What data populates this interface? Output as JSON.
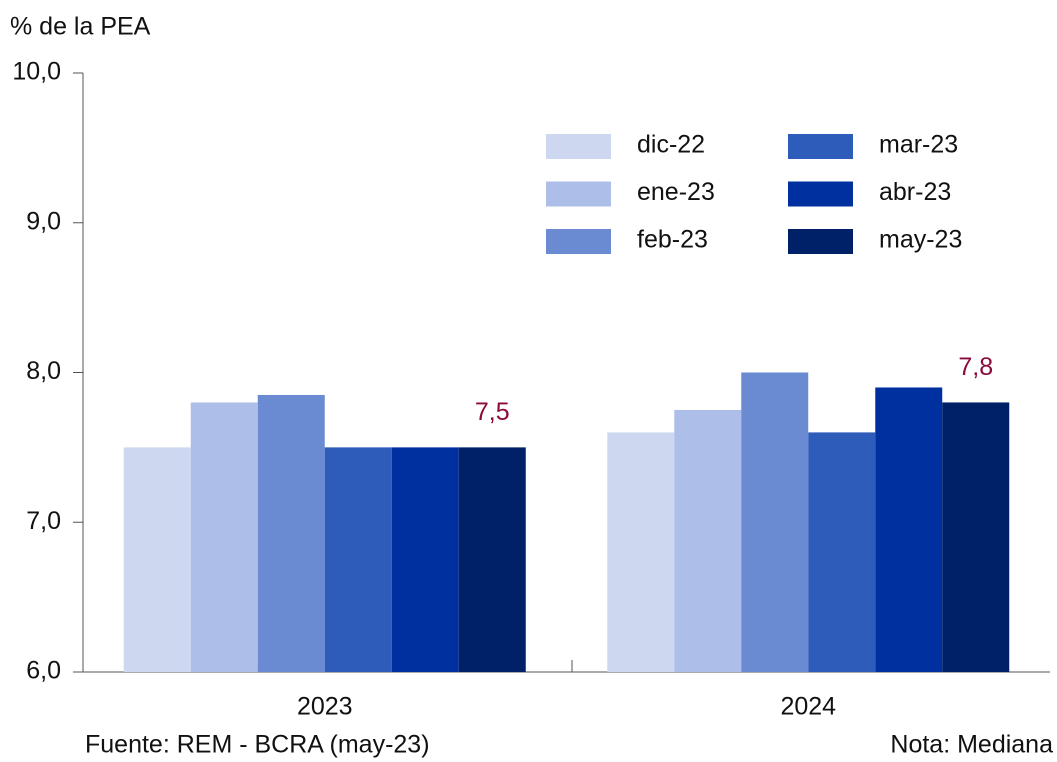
{
  "chart_data": {
    "type": "bar",
    "y_label": "% de la PEA",
    "categories": [
      "2023",
      "2024"
    ],
    "series": [
      {
        "name": "dic-22",
        "color": "#cdd8f0",
        "values": [
          7.5,
          7.6
        ]
      },
      {
        "name": "ene-23",
        "color": "#adbfe8",
        "values": [
          7.8,
          7.75
        ]
      },
      {
        "name": "feb-23",
        "color": "#6a8ad2",
        "values": [
          7.85,
          8.0
        ]
      },
      {
        "name": "mar-23",
        "color": "#2e5cbb",
        "values": [
          7.5,
          7.6
        ]
      },
      {
        "name": "abr-23",
        "color": "#0030a0",
        "values": [
          7.5,
          7.9
        ]
      },
      {
        "name": "may-23",
        "color": "#002068",
        "values": [
          7.5,
          7.8
        ],
        "value_labels": [
          "7,5",
          "7,8"
        ]
      }
    ],
    "ylim": [
      6,
      10
    ],
    "yticks": [
      {
        "value": 6,
        "label": "6,0"
      },
      {
        "value": 7,
        "label": "7,0"
      },
      {
        "value": 8,
        "label": "8,0"
      },
      {
        "value": 9,
        "label": "9,0"
      },
      {
        "value": 10,
        "label": "10,0"
      }
    ],
    "source": "Fuente: REM - BCRA (may-23)",
    "note": "Nota: Mediana"
  }
}
